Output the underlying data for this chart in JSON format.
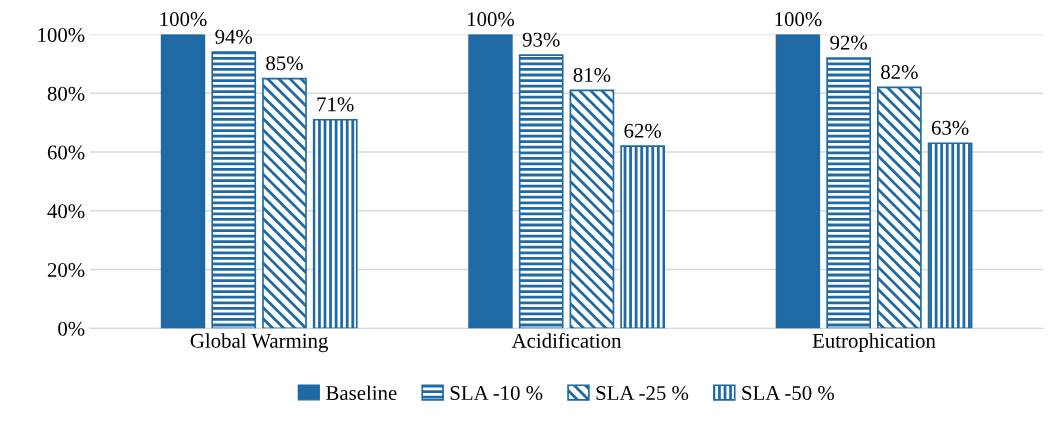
{
  "chart_data": {
    "type": "bar",
    "categories": [
      "Global Warming",
      "Acidification",
      "Eutrophication"
    ],
    "series": [
      {
        "name": "Baseline",
        "color": "#1f6aa5",
        "values": [
          100,
          100,
          100
        ],
        "value_labels": [
          "100%",
          "100%",
          "100%"
        ]
      },
      {
        "name": "SLA -10 %",
        "color": "#1f6aa5",
        "values": [
          94,
          93,
          92
        ],
        "value_labels": [
          "94%",
          "93%",
          "92%"
        ]
      },
      {
        "name": "SLA -25 %",
        "color": "#1f6aa5",
        "values": [
          85,
          81,
          82
        ],
        "value_labels": [
          "85%",
          "81%",
          "82%"
        ]
      },
      {
        "name": "SLA -50 %",
        "color": "#1f6aa5",
        "values": [
          71,
          62,
          63
        ],
        "value_labels": [
          "71%",
          "62%",
          "63%"
        ]
      }
    ],
    "ylim": [
      0,
      100
    ],
    "yticks": [
      {
        "value": 0,
        "label": "0%"
      },
      {
        "value": 20,
        "label": "20%"
      },
      {
        "value": 40,
        "label": "40%"
      },
      {
        "value": 60,
        "label": "60%"
      },
      {
        "value": 80,
        "label": "80%"
      },
      {
        "value": 100,
        "label": "100%"
      }
    ],
    "grid": "y",
    "legend": "bottom"
  }
}
